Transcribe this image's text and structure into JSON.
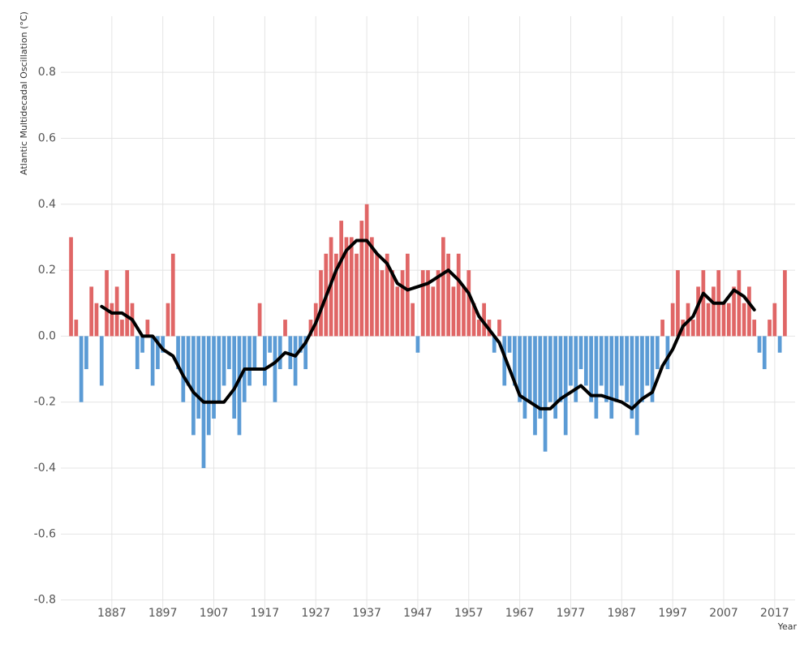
{
  "chart_data": {
    "type": "bar",
    "y_label": "Atlantic Multidecadal Oscillation (°C)",
    "x_label": "Year",
    "x": [
      1879,
      1880,
      1881,
      1882,
      1883,
      1884,
      1885,
      1886,
      1887,
      1888,
      1889,
      1890,
      1891,
      1892,
      1893,
      1894,
      1895,
      1896,
      1897,
      1898,
      1899,
      1900,
      1901,
      1902,
      1903,
      1904,
      1905,
      1906,
      1907,
      1908,
      1909,
      1910,
      1911,
      1912,
      1913,
      1914,
      1915,
      1916,
      1917,
      1918,
      1919,
      1920,
      1921,
      1922,
      1923,
      1924,
      1925,
      1926,
      1927,
      1928,
      1929,
      1930,
      1931,
      1932,
      1933,
      1934,
      1935,
      1936,
      1937,
      1938,
      1939,
      1940,
      1941,
      1942,
      1943,
      1944,
      1945,
      1946,
      1947,
      1948,
      1949,
      1950,
      1951,
      1952,
      1953,
      1954,
      1955,
      1956,
      1957,
      1958,
      1959,
      1960,
      1961,
      1962,
      1963,
      1964,
      1965,
      1966,
      1967,
      1968,
      1969,
      1970,
      1971,
      1972,
      1973,
      1974,
      1975,
      1976,
      1977,
      1978,
      1979,
      1980,
      1981,
      1982,
      1983,
      1984,
      1985,
      1986,
      1987,
      1988,
      1989,
      1990,
      1991,
      1992,
      1993,
      1994,
      1995,
      1996,
      1997,
      1998,
      1999,
      2000,
      2001,
      2002,
      2003,
      2004,
      2005,
      2006,
      2007,
      2008,
      2009,
      2010,
      2011,
      2012,
      2013,
      2014,
      2015,
      2016,
      2017,
      2018,
      2019
    ],
    "values": [
      0.3,
      0.05,
      -0.2,
      -0.1,
      0.15,
      0.1,
      -0.15,
      0.2,
      0.1,
      0.15,
      0.05,
      0.2,
      0.1,
      -0.1,
      -0.05,
      0.05,
      -0.15,
      -0.1,
      -0.05,
      0.1,
      0.25,
      -0.1,
      -0.2,
      -0.15,
      -0.3,
      -0.25,
      -0.4,
      -0.3,
      -0.25,
      -0.2,
      -0.15,
      -0.1,
      -0.25,
      -0.3,
      -0.2,
      -0.15,
      -0.1,
      0.1,
      -0.15,
      -0.05,
      -0.2,
      -0.1,
      0.05,
      -0.1,
      -0.15,
      -0.05,
      -0.1,
      0.05,
      0.1,
      0.2,
      0.25,
      0.3,
      0.25,
      0.35,
      0.3,
      0.3,
      0.25,
      0.35,
      0.4,
      0.3,
      0.25,
      0.2,
      0.25,
      0.2,
      0.15,
      0.2,
      0.25,
      0.1,
      -0.05,
      0.2,
      0.2,
      0.15,
      0.2,
      0.3,
      0.25,
      0.15,
      0.25,
      0.15,
      0.2,
      0.1,
      0.05,
      0.1,
      0.05,
      -0.05,
      0.05,
      -0.15,
      -0.05,
      -0.15,
      -0.2,
      -0.25,
      -0.2,
      -0.3,
      -0.25,
      -0.35,
      -0.2,
      -0.25,
      -0.2,
      -0.3,
      -0.15,
      -0.2,
      -0.1,
      -0.15,
      -0.2,
      -0.25,
      -0.15,
      -0.2,
      -0.25,
      -0.2,
      -0.15,
      -0.2,
      -0.25,
      -0.3,
      -0.2,
      -0.15,
      -0.2,
      -0.1,
      0.05,
      -0.1,
      0.1,
      0.2,
      0.05,
      0.1,
      0.05,
      0.15,
      0.2,
      0.1,
      0.15,
      0.2,
      0.1,
      0.1,
      0.15,
      0.2,
      0.1,
      0.15,
      0.05,
      -0.05,
      -0.1,
      0.05,
      0.1,
      -0.05,
      0.2
    ],
    "positive_color": "#e06666",
    "negative_color": "#5b9bd5",
    "smooth": {
      "color": "#000000",
      "x": [
        1885,
        1887,
        1889,
        1891,
        1893,
        1895,
        1897,
        1899,
        1901,
        1903,
        1905,
        1907,
        1909,
        1911,
        1913,
        1915,
        1917,
        1919,
        1921,
        1923,
        1925,
        1927,
        1929,
        1931,
        1933,
        1935,
        1937,
        1939,
        1941,
        1943,
        1945,
        1947,
        1949,
        1951,
        1953,
        1955,
        1957,
        1959,
        1961,
        1963,
        1965,
        1967,
        1969,
        1971,
        1973,
        1975,
        1977,
        1979,
        1981,
        1983,
        1985,
        1987,
        1989,
        1991,
        1993,
        1995,
        1997,
        1999,
        2001,
        2003,
        2005,
        2007,
        2009,
        2011,
        2013
      ],
      "values": [
        0.09,
        0.07,
        0.07,
        0.05,
        0.0,
        0.0,
        -0.04,
        -0.06,
        -0.12,
        -0.17,
        -0.2,
        -0.2,
        -0.2,
        -0.16,
        -0.1,
        -0.1,
        -0.1,
        -0.08,
        -0.05,
        -0.06,
        -0.02,
        0.04,
        0.12,
        0.2,
        0.26,
        0.29,
        0.29,
        0.25,
        0.22,
        0.16,
        0.14,
        0.15,
        0.16,
        0.18,
        0.2,
        0.17,
        0.13,
        0.06,
        0.02,
        -0.02,
        -0.1,
        -0.18,
        -0.2,
        -0.22,
        -0.22,
        -0.19,
        -0.17,
        -0.15,
        -0.18,
        -0.18,
        -0.19,
        -0.2,
        -0.22,
        -0.19,
        -0.17,
        -0.09,
        -0.04,
        0.03,
        0.06,
        0.13,
        0.1,
        0.1,
        0.14,
        0.12,
        0.08
      ]
    },
    "xlim": [
      1877,
      2021
    ],
    "ylim": [
      -0.85,
      0.97
    ],
    "xticks": [
      1887,
      1897,
      1907,
      1917,
      1927,
      1937,
      1947,
      1957,
      1967,
      1977,
      1987,
      1997,
      2007,
      2017
    ],
    "yticks": [
      -0.8,
      -0.6,
      -0.4,
      -0.2,
      {
        "value": 0,
        "label": "0.0"
      },
      0.2,
      0.4,
      0.6,
      0.8
    ],
    "grid": true
  }
}
